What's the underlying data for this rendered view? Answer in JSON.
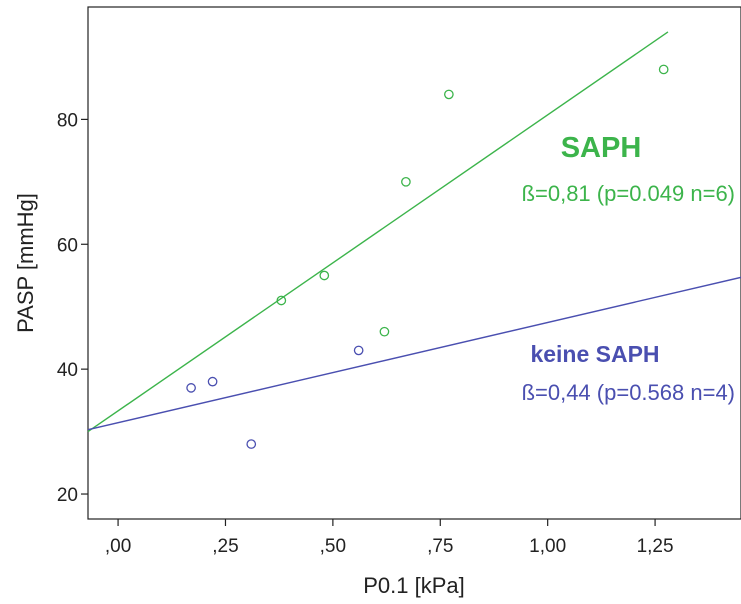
{
  "chart_data": {
    "type": "scatter",
    "xlabel": "P0.1 [kPa]",
    "ylabel": "PASP [mmHg]",
    "xlim": [
      -0.07,
      1.45
    ],
    "ylim": [
      16,
      98
    ],
    "x_ticks": [
      0,
      0.25,
      0.5,
      0.75,
      1.0,
      1.25
    ],
    "x_tick_labels": [
      ",00",
      ",25",
      ",50",
      ",75",
      "1,00",
      "1,25"
    ],
    "y_ticks": [
      20,
      40,
      60,
      80
    ],
    "y_tick_labels": [
      "20",
      "40",
      "60",
      "80"
    ],
    "grid": false,
    "series": [
      {
        "name": "SAPH",
        "color": "#3cb44b",
        "marker": "open-circle",
        "points": [
          {
            "x": 0.38,
            "y": 51
          },
          {
            "x": 0.48,
            "y": 55
          },
          {
            "x": 0.62,
            "y": 46
          },
          {
            "x": 0.67,
            "y": 70
          },
          {
            "x": 0.77,
            "y": 84
          },
          {
            "x": 1.27,
            "y": 88
          }
        ],
        "fit_line": {
          "x": [
            -0.07,
            1.28
          ],
          "y": [
            30,
            94
          ]
        },
        "annotation_title": "SAPH",
        "annotation_stat": "ß=0,81 (p=0.049 n=6)"
      },
      {
        "name": "keine SAPH",
        "color": "#4a4fb0",
        "marker": "open-circle",
        "points": [
          {
            "x": 0.17,
            "y": 37
          },
          {
            "x": 0.22,
            "y": 38
          },
          {
            "x": 0.31,
            "y": 28
          },
          {
            "x": 0.56,
            "y": 43
          }
        ],
        "fit_line": {
          "x": [
            -0.07,
            1.45
          ],
          "y": [
            30.3,
            54.7
          ]
        },
        "annotation_title": "keine SAPH",
        "annotation_stat": "ß=0,44 (p=0.568 n=4)"
      }
    ]
  }
}
